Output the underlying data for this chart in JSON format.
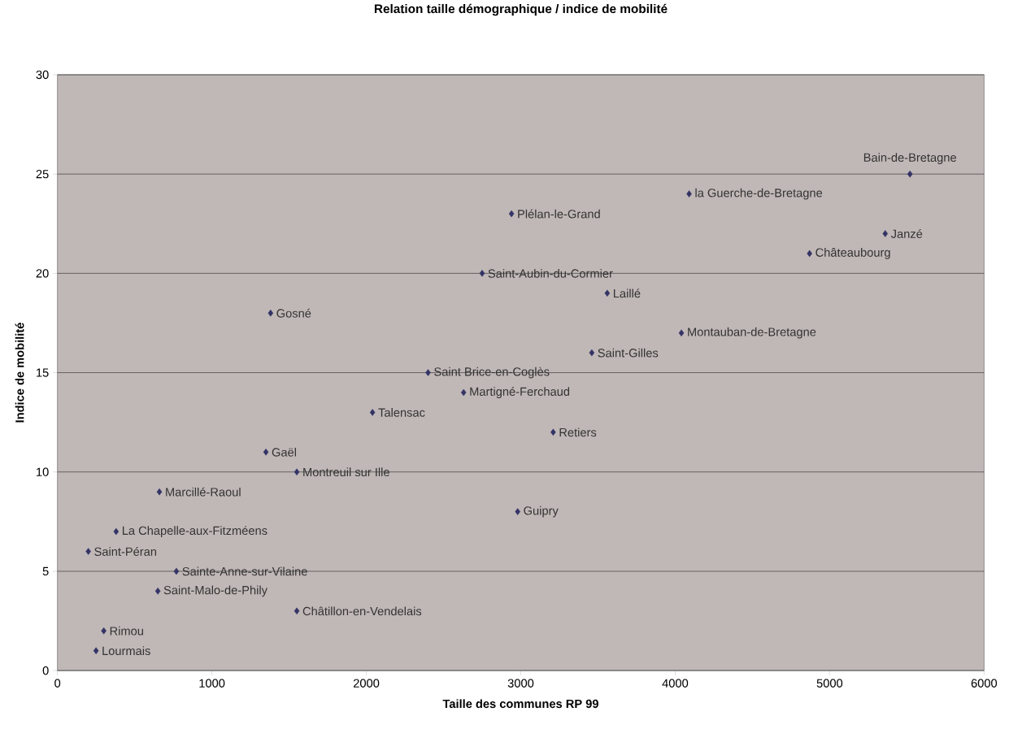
{
  "chart_data": {
    "type": "scatter",
    "title": "Relation taille démographique / indice de mobilité",
    "xlabel": "Taille des communes RP 99",
    "ylabel": "Indice de mobilité",
    "x": [
      5520,
      4090,
      2940,
      5360,
      4870,
      2750,
      3560,
      1380,
      4040,
      3460,
      2400,
      2630,
      2040,
      3210,
      1350,
      1550,
      660,
      2980,
      380,
      200,
      770,
      650,
      1550,
      300,
      250
    ],
    "values": [
      25,
      24,
      23,
      22,
      21,
      20,
      19,
      18,
      17,
      16,
      15,
      14,
      13,
      12,
      11,
      10,
      9,
      8,
      7,
      6,
      5,
      4,
      3,
      2,
      1
    ],
    "color": "#333366",
    "marker": "diamond",
    "grid": "y",
    "xlim": [
      0,
      6000
    ],
    "ylim": [
      0,
      30
    ],
    "xticks": [
      0,
      1000,
      2000,
      3000,
      4000,
      5000,
      6000
    ],
    "yticks": [
      0,
      5,
      10,
      15,
      20,
      25,
      30
    ],
    "annotations": [
      {
        "text": "Bain-de-Bretagne",
        "x": 5520,
        "y": 25
      },
      {
        "text": "la Guerche-de-Bretagne",
        "x": 4090,
        "y": 24
      },
      {
        "text": "Plélan-le-Grand",
        "x": 2940,
        "y": 23
      },
      {
        "text": "Janzé",
        "x": 5360,
        "y": 22
      },
      {
        "text": "Châteaubourg",
        "x": 4870,
        "y": 21
      },
      {
        "text": "Saint-Aubin-du-Cormier",
        "x": 2750,
        "y": 20
      },
      {
        "text": "Laillé",
        "x": 3560,
        "y": 19
      },
      {
        "text": "Gosné",
        "x": 1380,
        "y": 18
      },
      {
        "text": "Montauban-de-Bretagne",
        "x": 4040,
        "y": 17
      },
      {
        "text": "Saint-Gilles",
        "x": 3460,
        "y": 16
      },
      {
        "text": "Saint Brice-en-Coglès",
        "x": 2400,
        "y": 15
      },
      {
        "text": "Martigné-Ferchaud",
        "x": 2630,
        "y": 14
      },
      {
        "text": "Talensac",
        "x": 2040,
        "y": 13
      },
      {
        "text": "Retiers",
        "x": 3210,
        "y": 12
      },
      {
        "text": "Gaël",
        "x": 1350,
        "y": 11
      },
      {
        "text": "Montreuil sur Ille",
        "x": 1550,
        "y": 10
      },
      {
        "text": "Marcillé-Raoul",
        "x": 660,
        "y": 9
      },
      {
        "text": "Guipry",
        "x": 2980,
        "y": 8
      },
      {
        "text": "La Chapelle-aux-Fitzméens",
        "x": 380,
        "y": 7
      },
      {
        "text": "Saint-Péran",
        "x": 200,
        "y": 6
      },
      {
        "text": "Sainte-Anne-sur-Vilaine",
        "x": 770,
        "y": 5
      },
      {
        "text": "Saint-Malo-de-Phily",
        "x": 650,
        "y": 4
      },
      {
        "text": "Châtillon-en-Vendelais",
        "x": 1550,
        "y": 3
      },
      {
        "text": "Rimou",
        "x": 300,
        "y": 2
      },
      {
        "text": "Lourmais",
        "x": 250,
        "y": 1
      }
    ]
  }
}
